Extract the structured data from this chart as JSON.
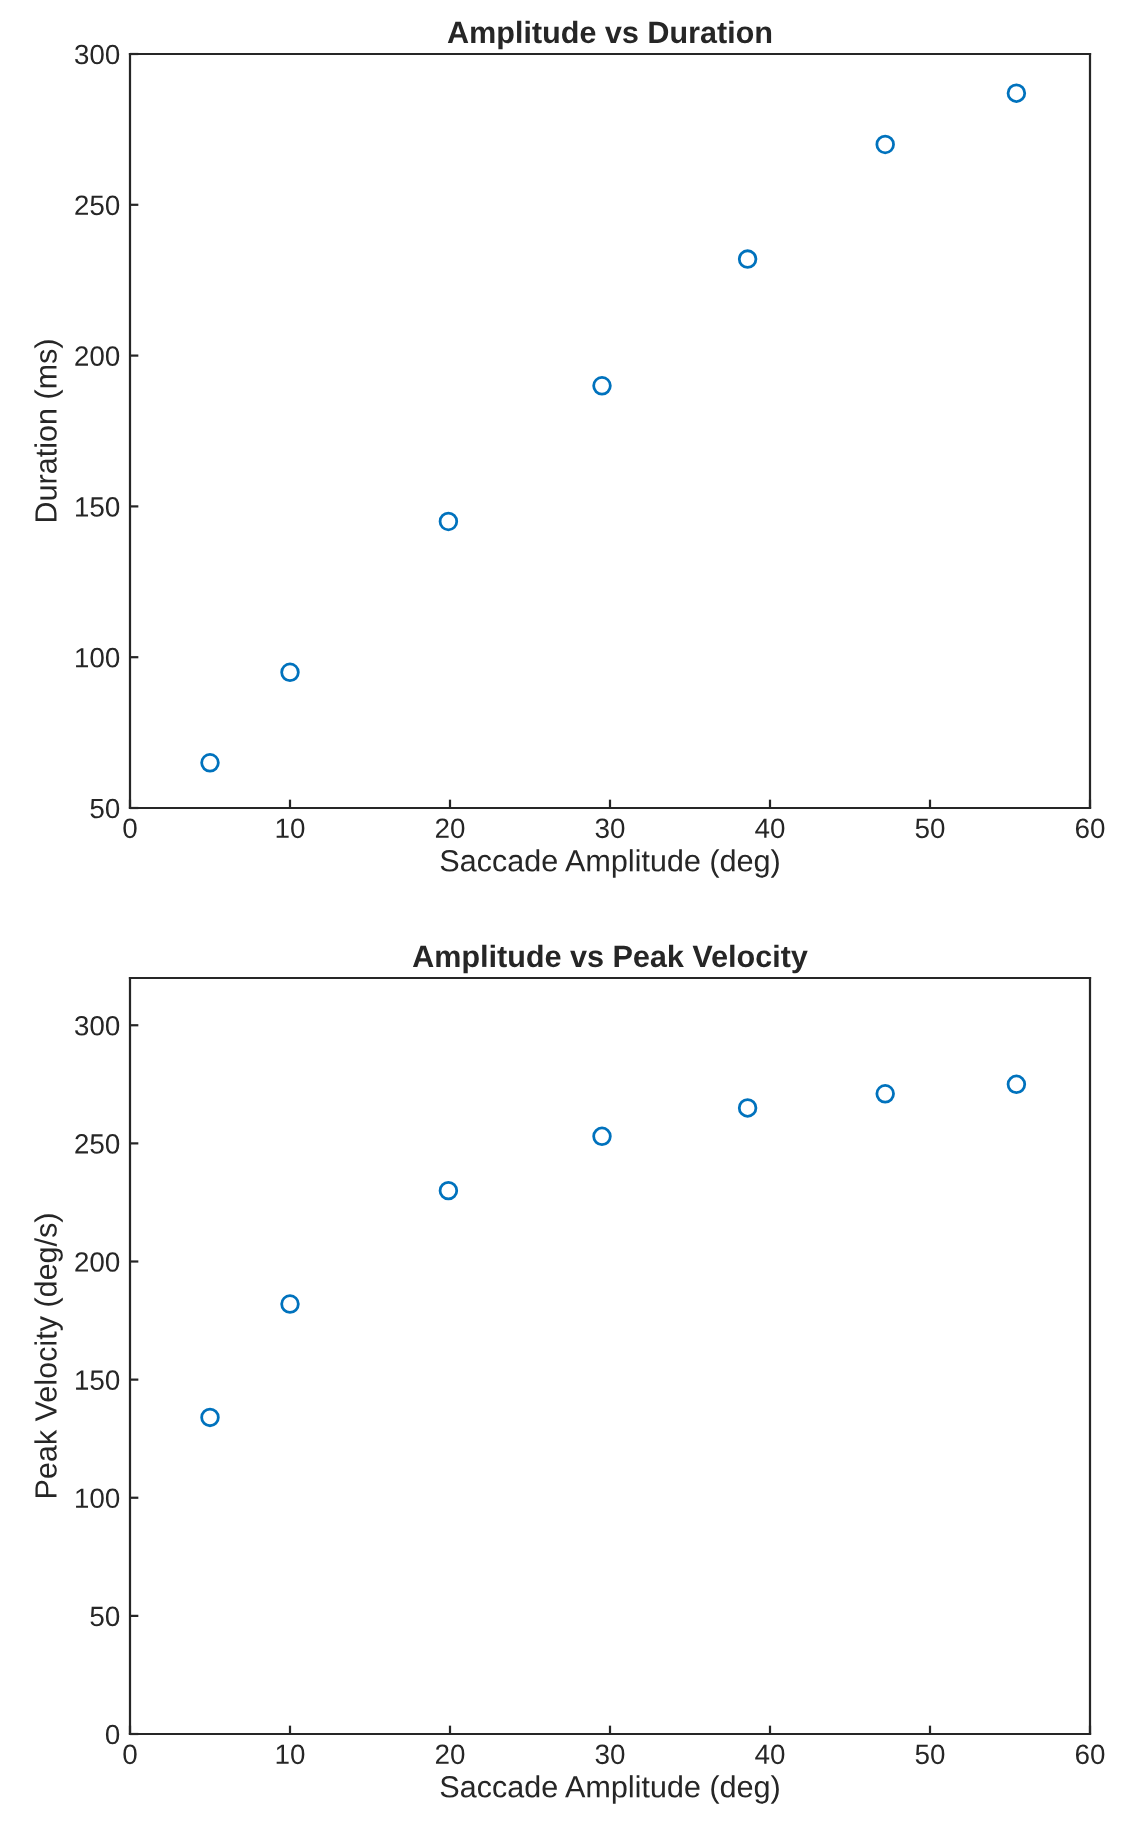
{
  "chart_data": [
    {
      "type": "scatter",
      "title": "Amplitude vs Duration",
      "xlabel": "Saccade Amplitude (deg)",
      "ylabel": "Duration (ms)",
      "x": [
        5,
        10,
        19.9,
        29.5,
        38.6,
        47.2,
        55.4
      ],
      "series": [
        {
          "color": "#0072bd",
          "values": [
            65,
            95,
            145,
            190,
            232,
            270,
            287
          ]
        }
      ],
      "xlim": [
        0,
        60
      ],
      "ylim": [
        50,
        300
      ],
      "xticks": [
        0,
        10,
        20,
        30,
        40,
        50,
        60
      ],
      "yticks": [
        50,
        100,
        150,
        200,
        250,
        300
      ],
      "marker": "circle",
      "grid": false
    },
    {
      "type": "scatter",
      "title": "Amplitude vs Peak Velocity",
      "xlabel": "Saccade Amplitude (deg)",
      "ylabel": "Peak Velocity (deg/s)",
      "x": [
        5,
        10,
        19.9,
        29.5,
        38.6,
        47.2,
        55.4
      ],
      "series": [
        {
          "color": "#0072bd",
          "values": [
            134,
            182,
            230,
            253,
            265,
            271,
            275
          ]
        }
      ],
      "xlim": [
        0,
        60
      ],
      "ylim": [
        0,
        320
      ],
      "xticks": [
        0,
        10,
        20,
        30,
        40,
        50,
        60
      ],
      "yticks": [
        0,
        50,
        100,
        150,
        200,
        250,
        300
      ],
      "marker": "circle",
      "grid": false
    }
  ]
}
